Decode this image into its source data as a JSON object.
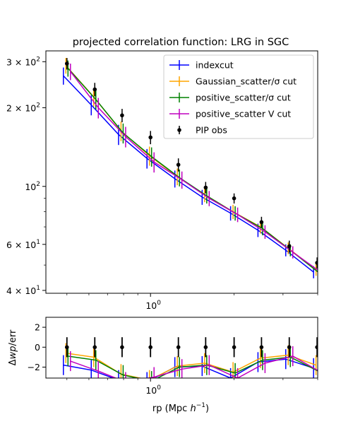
{
  "chart_data": [
    {
      "type": "line",
      "title": "projected correlation function: LRG in SGC",
      "xlabel": "",
      "ylabel": "",
      "xscale": "log",
      "yscale": "log",
      "xlim": [
        0.42,
        4.0
      ],
      "ylim": [
        39,
        330
      ],
      "x_major_ticks": [
        {
          "value": 1,
          "base": "10",
          "exp": "0"
        }
      ],
      "y_major_ticks": [
        {
          "value": 40,
          "coef": "4",
          "base": "10",
          "exp": "1"
        },
        {
          "value": 60,
          "coef": "6",
          "base": "10",
          "exp": "1"
        },
        {
          "value": 100,
          "coef": "",
          "base": "10",
          "exp": "2"
        },
        {
          "value": 200,
          "coef": "2",
          "base": "10",
          "exp": "2"
        },
        {
          "value": 300,
          "coef": "3",
          "base": "10",
          "exp": "2"
        }
      ],
      "legend_position": "top-right",
      "x": [
        0.5,
        0.63,
        0.79,
        1.0,
        1.26,
        1.58,
        2.0,
        2.51,
        3.16,
        3.98
      ],
      "series": [
        {
          "name": "indexcut",
          "color": "#0000ff",
          "marker": "errorbar-line",
          "values": [
            265,
            205,
            158,
            128,
            107,
            91,
            79,
            68,
            57,
            47
          ],
          "errors": [
            20,
            18,
            14,
            11,
            8,
            6,
            5,
            4,
            3,
            2.5
          ]
        },
        {
          "name": "Gaussian_scatter/σ cut",
          "color": "#ffa500",
          "marker": "errorbar-line",
          "values": [
            290,
            220,
            163,
            131,
            109,
            93,
            80,
            70,
            58,
            48
          ],
          "errors": [
            20,
            18,
            14,
            11,
            8,
            6,
            5,
            4,
            3,
            2.5
          ]
        },
        {
          "name": "positive_scatter/σ cut",
          "color": "#008000",
          "marker": "errorbar-line",
          "values": [
            283,
            215,
            160,
            130,
            108,
            92,
            79,
            69,
            57,
            47
          ],
          "errors": [
            20,
            18,
            14,
            11,
            8,
            6,
            5,
            4,
            3,
            2.5
          ]
        },
        {
          "name": "positive_scatter V cut",
          "color": "#bf00bf",
          "marker": "errorbar-line",
          "values": [
            275,
            200,
            155,
            124,
            106,
            90,
            78,
            67,
            56,
            47
          ],
          "errors": [
            20,
            18,
            14,
            11,
            8,
            6,
            5,
            4,
            3,
            2.5
          ]
        },
        {
          "name": "PIP obs",
          "color": "#000000",
          "marker": "point-errorbar",
          "values": [
            295,
            235,
            187,
            154,
            121,
            99,
            90,
            73,
            59,
            51
          ],
          "errors": [
            15,
            14,
            11,
            9,
            7,
            5,
            4,
            3.5,
            3,
            2.5
          ]
        }
      ]
    },
    {
      "type": "line",
      "title": "",
      "xlabel": "rp (Mpc h⁻¹)",
      "xlabel_parts": {
        "main": "rp (Mpc ",
        "italic": "h",
        "sup": "−1",
        "end": ")"
      },
      "ylabel": "Δwp/err",
      "ylabel_parts": {
        "delta": "Δ",
        "italic": "wp",
        "rest": "/err"
      },
      "xscale": "log",
      "xlim": [
        0.42,
        4.0
      ],
      "ylim": [
        -3.1,
        3.0
      ],
      "x_major_ticks": [
        {
          "value": 1,
          "base": "10",
          "exp": "0"
        }
      ],
      "y_ticks": [
        -2,
        0,
        2
      ],
      "x": [
        0.5,
        0.63,
        0.79,
        1.0,
        1.26,
        1.58,
        2.0,
        2.51,
        3.16,
        3.98
      ],
      "series": [
        {
          "name": "indexcut",
          "color": "#0000ff",
          "values": [
            -1.8,
            -2.3,
            -3.3,
            -3.5,
            -2.0,
            -1.9,
            -3.1,
            -1.5,
            -1.2,
            -2.1
          ]
        },
        {
          "name": "Gaussian_scatter/σ cut",
          "color": "#ffa500",
          "values": [
            -0.6,
            -1.0,
            -2.7,
            -3.3,
            -1.9,
            -1.6,
            -2.5,
            -1.1,
            -0.8,
            -1.8
          ]
        },
        {
          "name": "positive_scatter/σ cut",
          "color": "#008000",
          "values": [
            -0.9,
            -1.3,
            -2.8,
            -3.4,
            -2.0,
            -1.8,
            -2.6,
            -1.3,
            -1.0,
            -2.4
          ]
        },
        {
          "name": "positive_scatter V cut",
          "color": "#bf00bf",
          "values": [
            -1.4,
            -2.4,
            -3.5,
            -3.0,
            -2.2,
            -1.8,
            -3.1,
            -1.6,
            -0.9,
            -2.5
          ]
        },
        {
          "name": "PIP obs",
          "color": "#000000",
          "marker": "point-errorbar",
          "values": [
            0,
            0,
            0,
            0,
            0,
            0,
            0,
            0,
            0,
            0
          ],
          "errors": [
            1,
            1,
            1,
            1,
            1,
            1,
            1,
            1,
            1,
            1
          ]
        }
      ]
    }
  ]
}
